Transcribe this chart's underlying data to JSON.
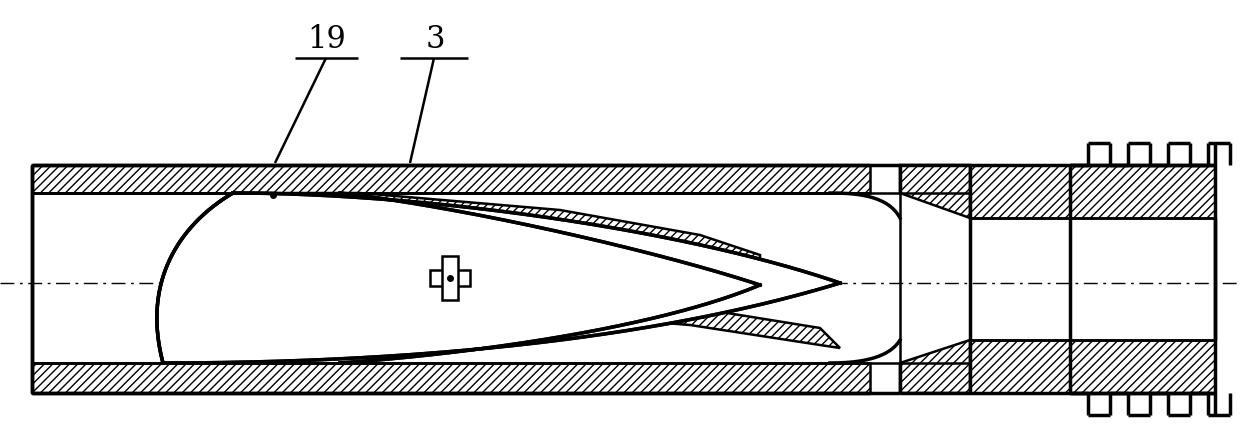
{
  "bg_color": "#ffffff",
  "line_color": "#000000",
  "lw": 1.8,
  "lw_thick": 2.5,
  "label_19": "19",
  "label_3": "3",
  "figsize": [
    12.4,
    4.45
  ],
  "dpi": 100
}
